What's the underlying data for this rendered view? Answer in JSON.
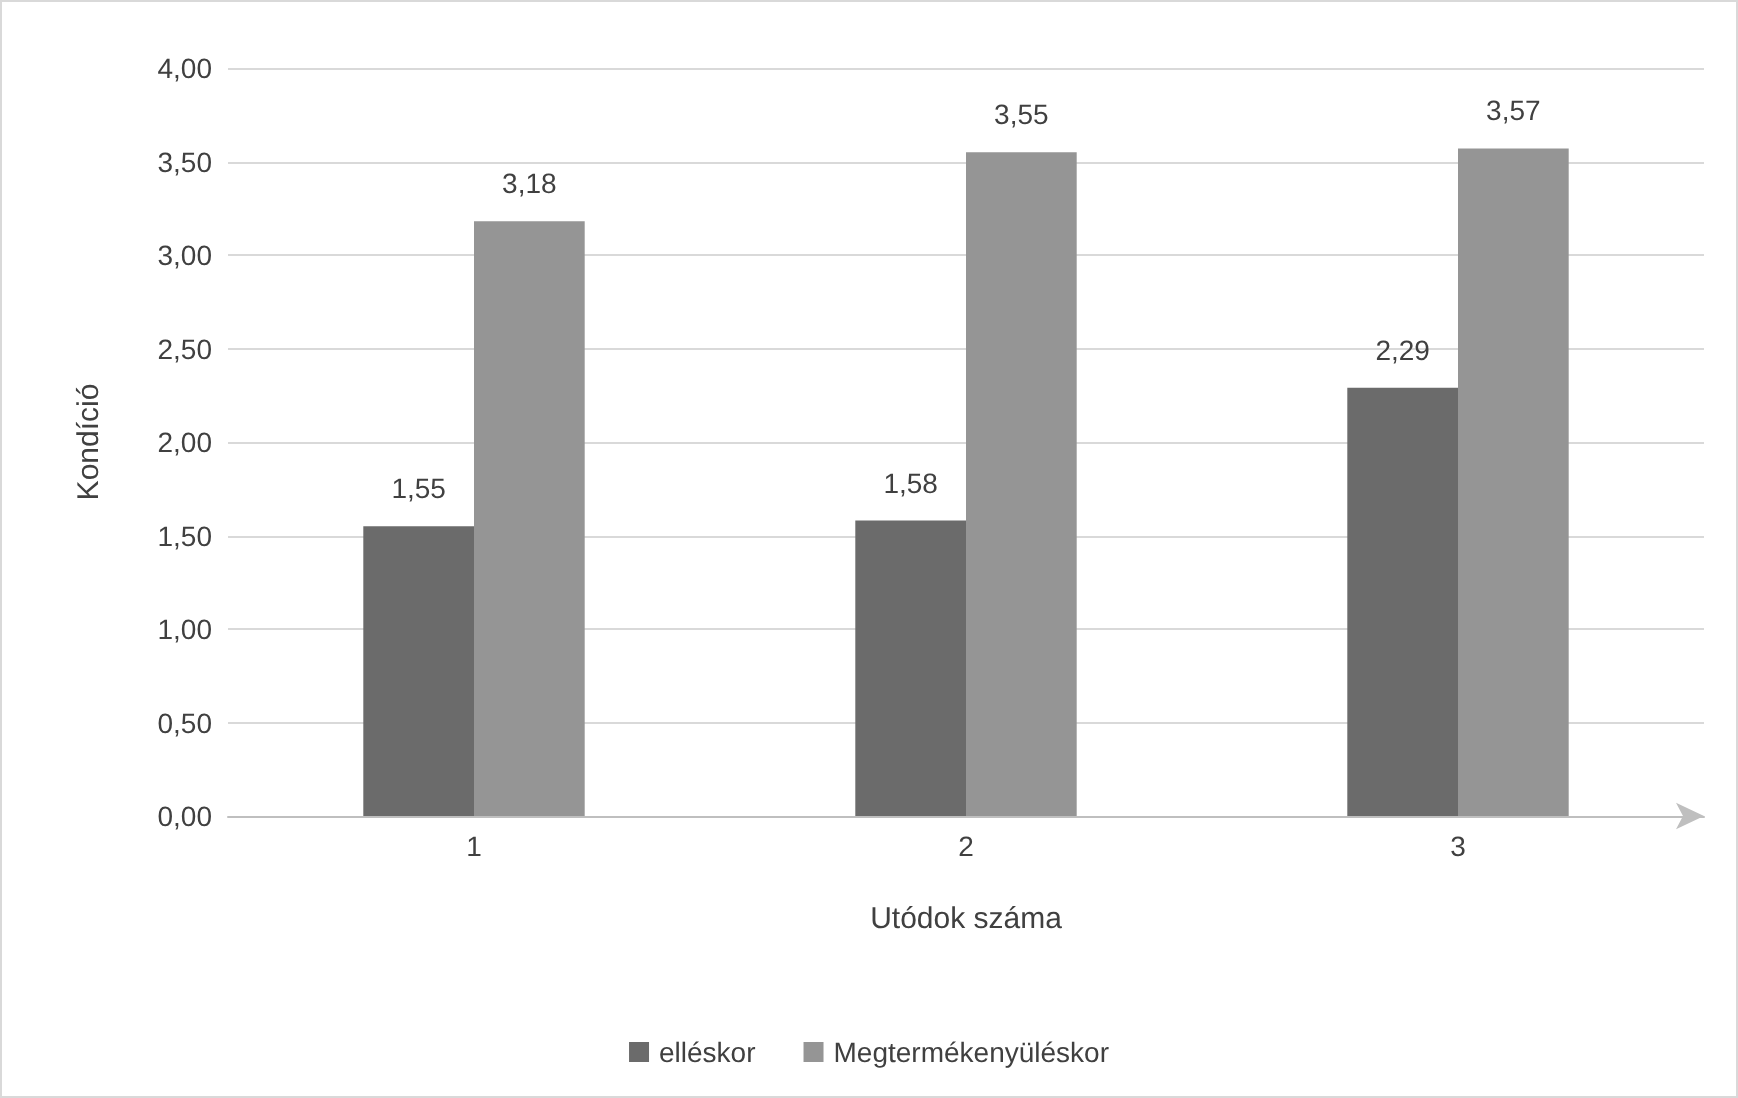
{
  "chart_data": {
    "type": "bar",
    "xlabel": "Utódok száma",
    "ylabel": "Kondíció",
    "categories": [
      "1",
      "2",
      "3"
    ],
    "series": [
      {
        "name": "elléskor",
        "color": "#6b6b6b",
        "values": [
          1.55,
          1.58,
          2.29
        ],
        "value_labels": [
          "1,55",
          "1,58",
          "2,29"
        ]
      },
      {
        "name": "Megtermékenyüléskor",
        "color": "#959595",
        "values": [
          3.18,
          3.55,
          3.57
        ],
        "value_labels": [
          "3,18",
          "3,55",
          "3,57"
        ]
      }
    ],
    "ylim": [
      0,
      4
    ],
    "yticks": [
      {
        "value": 0,
        "label": "0,00"
      },
      {
        "value": 0.5,
        "label": "0,50"
      },
      {
        "value": 1,
        "label": "1,00"
      },
      {
        "value": 1.5,
        "label": "1,50"
      },
      {
        "value": 2,
        "label": "2,00"
      },
      {
        "value": 2.5,
        "label": "2,50"
      },
      {
        "value": 3,
        "label": "3,00"
      },
      {
        "value": 3.5,
        "label": "3,50"
      },
      {
        "value": 4,
        "label": "4,00"
      }
    ],
    "grid": "y",
    "legend": "bottom"
  }
}
